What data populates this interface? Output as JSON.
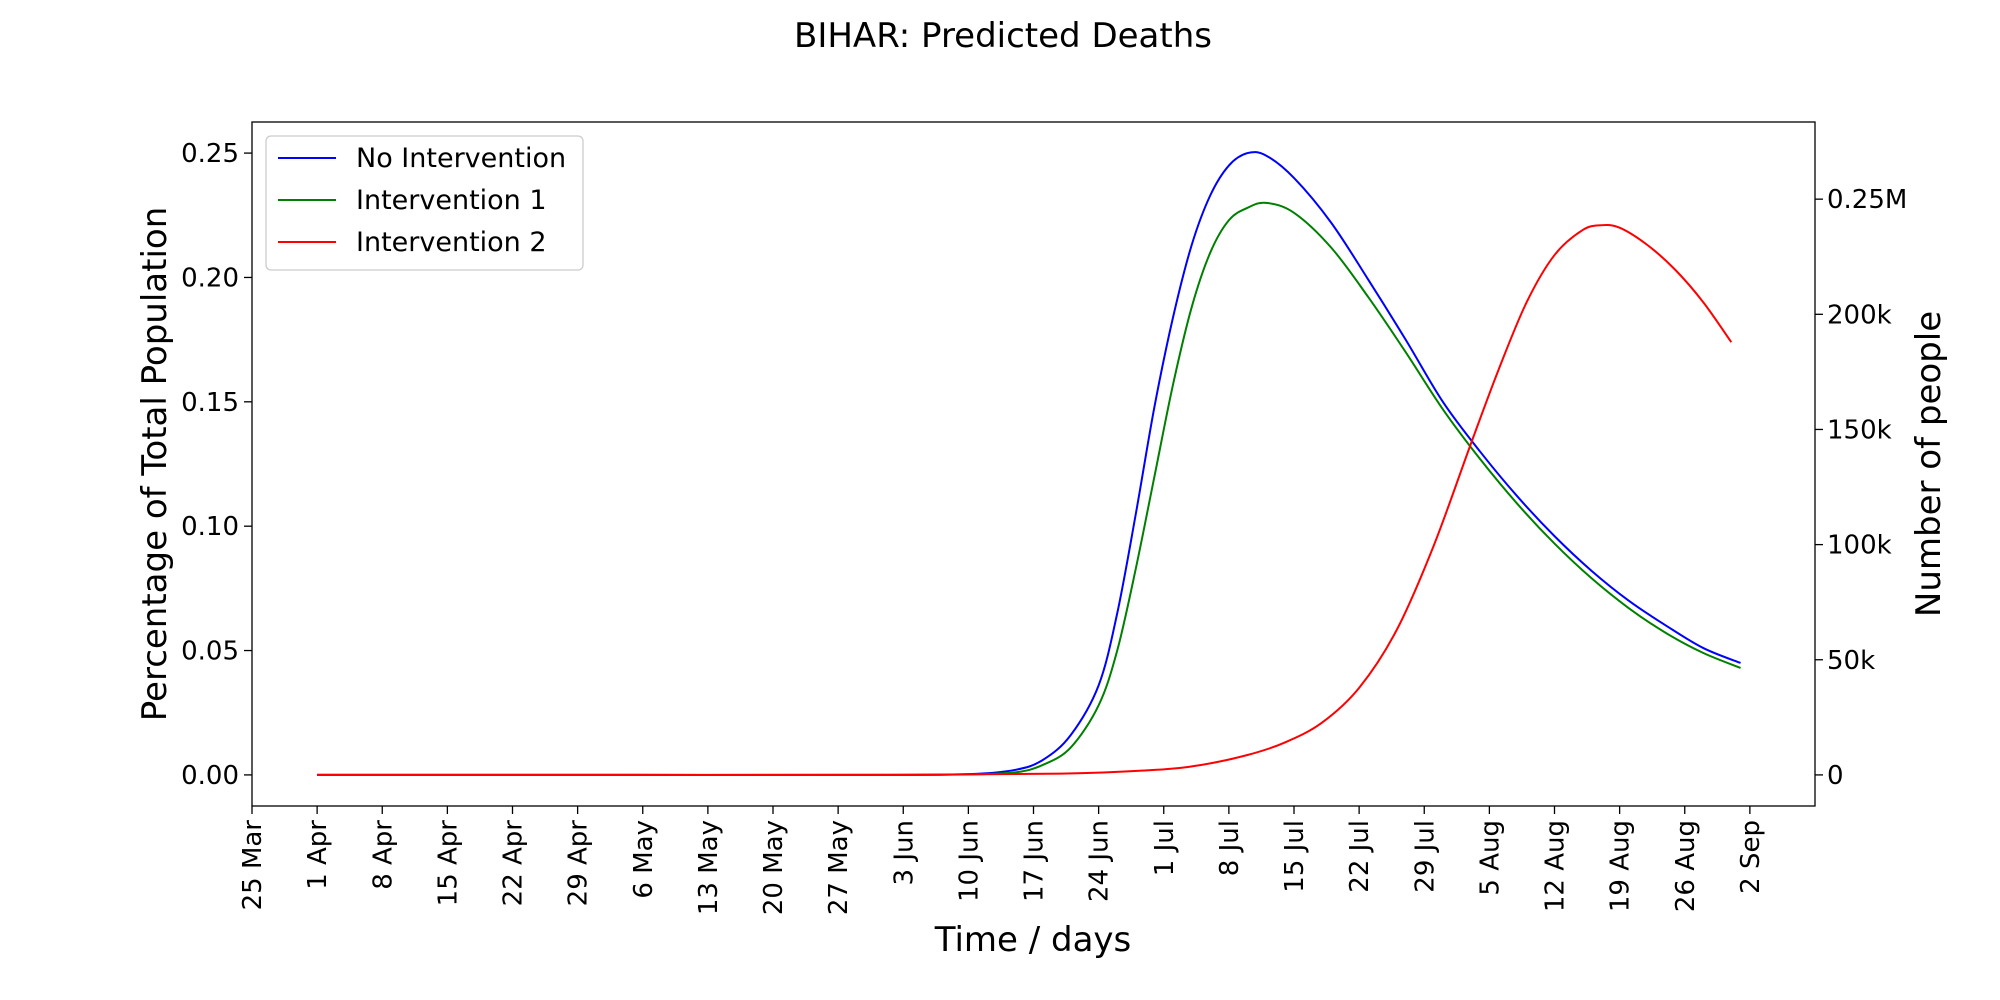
{
  "chart_data": {
    "type": "line",
    "title": "BIHAR: Predicted Deaths",
    "xlabel": "Time / days",
    "ylabel": "Percentage of Total Population",
    "y2label": "Number of people",
    "x_ticks": [
      "25 Mar",
      "1 Apr",
      "8 Apr",
      "15 Apr",
      "22 Apr",
      "29 Apr",
      "6 May",
      "13 May",
      "20 May",
      "27 May",
      "3 Jun",
      "10 Jun",
      "17 Jun",
      "24 Jun",
      "1 Jul",
      "8 Jul",
      "15 Jul",
      "22 Jul",
      "29 Jul",
      "5 Aug",
      "12 Aug",
      "19 Aug",
      "26 Aug",
      "2 Sep"
    ],
    "x_range": [
      "2020-03-25",
      "2020-09-09"
    ],
    "ylim": [
      -0.0125,
      0.2625
    ],
    "y_ticks": [
      0.0,
      0.05,
      0.1,
      0.15,
      0.2,
      0.25
    ],
    "y_tick_labels": [
      "0.00",
      "0.05",
      "0.10",
      "0.15",
      "0.20",
      "0.25"
    ],
    "y2lim": [
      -13500,
      283500
    ],
    "y2_ticks": [
      0,
      50000,
      100000,
      150000,
      200000,
      250000
    ],
    "y2_tick_labels": [
      "0",
      "50k",
      "100k",
      "150k",
      "200k",
      "0.25M"
    ],
    "legend_position": "top-left",
    "grid": false,
    "series": [
      {
        "name": "No Intervention",
        "color": "#0000ff",
        "points": [
          [
            "2020-04-01",
            0.0
          ],
          [
            "2020-05-01",
            0.0
          ],
          [
            "2020-06-01",
            0.0
          ],
          [
            "2020-06-10",
            0.0003
          ],
          [
            "2020-06-15",
            0.002
          ],
          [
            "2020-06-18",
            0.006
          ],
          [
            "2020-06-21",
            0.016
          ],
          [
            "2020-06-24",
            0.036
          ],
          [
            "2020-06-26",
            0.065
          ],
          [
            "2020-06-28",
            0.105
          ],
          [
            "2020-06-30",
            0.148
          ],
          [
            "2020-07-02",
            0.184
          ],
          [
            "2020-07-04",
            0.213
          ],
          [
            "2020-07-06",
            0.233
          ],
          [
            "2020-07-08",
            0.245
          ],
          [
            "2020-07-10",
            0.25
          ],
          [
            "2020-07-12",
            0.249
          ],
          [
            "2020-07-15",
            0.24
          ],
          [
            "2020-07-19",
            0.222
          ],
          [
            "2020-07-23",
            0.199
          ],
          [
            "2020-07-27",
            0.175
          ],
          [
            "2020-07-31",
            0.15
          ],
          [
            "2020-08-04",
            0.13
          ],
          [
            "2020-08-08",
            0.112
          ],
          [
            "2020-08-12",
            0.096
          ],
          [
            "2020-08-16",
            0.082
          ],
          [
            "2020-08-20",
            0.07
          ],
          [
            "2020-08-24",
            0.06
          ],
          [
            "2020-08-28",
            0.051
          ],
          [
            "2020-09-01",
            0.045
          ]
        ]
      },
      {
        "name": "Intervention 1",
        "color": "#008000",
        "points": [
          [
            "2020-04-01",
            0.0
          ],
          [
            "2020-05-01",
            0.0
          ],
          [
            "2020-06-01",
            0.0
          ],
          [
            "2020-06-10",
            0.0002
          ],
          [
            "2020-06-15",
            0.001
          ],
          [
            "2020-06-18",
            0.004
          ],
          [
            "2020-06-21",
            0.011
          ],
          [
            "2020-06-24",
            0.028
          ],
          [
            "2020-06-26",
            0.05
          ],
          [
            "2020-06-28",
            0.083
          ],
          [
            "2020-06-30",
            0.12
          ],
          [
            "2020-07-02",
            0.157
          ],
          [
            "2020-07-04",
            0.188
          ],
          [
            "2020-07-06",
            0.21
          ],
          [
            "2020-07-08",
            0.223
          ],
          [
            "2020-07-10",
            0.228
          ],
          [
            "2020-07-12",
            0.23
          ],
          [
            "2020-07-15",
            0.226
          ],
          [
            "2020-07-19",
            0.212
          ],
          [
            "2020-07-23",
            0.192
          ],
          [
            "2020-07-27",
            0.17
          ],
          [
            "2020-07-31",
            0.147
          ],
          [
            "2020-08-04",
            0.127
          ],
          [
            "2020-08-08",
            0.109
          ],
          [
            "2020-08-12",
            0.093
          ],
          [
            "2020-08-16",
            0.079
          ],
          [
            "2020-08-20",
            0.067
          ],
          [
            "2020-08-24",
            0.057
          ],
          [
            "2020-08-28",
            0.049
          ],
          [
            "2020-09-01",
            0.043
          ]
        ]
      },
      {
        "name": "Intervention 2",
        "color": "#ff0000",
        "points": [
          [
            "2020-04-01",
            0.0
          ],
          [
            "2020-05-01",
            0.0
          ],
          [
            "2020-06-01",
            0.0
          ],
          [
            "2020-06-20",
            0.0005
          ],
          [
            "2020-06-30",
            0.002
          ],
          [
            "2020-07-05",
            0.004
          ],
          [
            "2020-07-10",
            0.008
          ],
          [
            "2020-07-14",
            0.013
          ],
          [
            "2020-07-18",
            0.021
          ],
          [
            "2020-07-22",
            0.035
          ],
          [
            "2020-07-26",
            0.058
          ],
          [
            "2020-07-30",
            0.092
          ],
          [
            "2020-08-03",
            0.133
          ],
          [
            "2020-08-06",
            0.163
          ],
          [
            "2020-08-09",
            0.19
          ],
          [
            "2020-08-12",
            0.209
          ],
          [
            "2020-08-15",
            0.219
          ],
          [
            "2020-08-17",
            0.221
          ],
          [
            "2020-08-19",
            0.22
          ],
          [
            "2020-08-22",
            0.213
          ],
          [
            "2020-08-25",
            0.203
          ],
          [
            "2020-08-28",
            0.19
          ],
          [
            "2020-08-31",
            0.174
          ]
        ]
      }
    ]
  }
}
